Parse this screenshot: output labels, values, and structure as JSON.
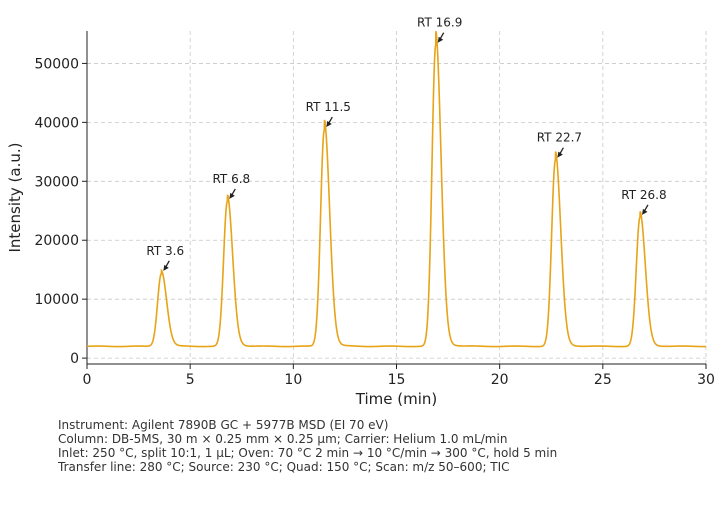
{
  "chart_data": {
    "type": "line",
    "xlabel": "Time (min)",
    "ylabel": "Intensity (a.u.)",
    "xlim": [
      0,
      30
    ],
    "ylim": [
      -1000,
      55500
    ],
    "xticks": [
      0,
      5,
      10,
      15,
      20,
      25,
      30
    ],
    "yticks": [
      0,
      10000,
      20000,
      30000,
      40000,
      50000
    ],
    "grid": true,
    "line_color": "#E8A317",
    "baseline": 2000,
    "peaks": [
      {
        "label": "RT 3.6",
        "x": 3.6,
        "y": 14300
      },
      {
        "label": "RT 6.8",
        "x": 6.8,
        "y": 26500
      },
      {
        "label": "RT 11.5",
        "x": 11.5,
        "y": 38700
      },
      {
        "label": "RT 16.9",
        "x": 16.9,
        "y": 53000
      },
      {
        "label": "RT 22.7",
        "x": 22.7,
        "y": 33500
      },
      {
        "label": "RT 26.8",
        "x": 26.8,
        "y": 23800
      }
    ]
  },
  "notes": [
    "Instrument: Agilent 7890B GC + 5977B MSD (EI 70 eV)",
    "Column: DB-5MS, 30 m × 0.25 mm × 0.25 µm; Carrier: Helium 1.0 mL/min",
    "Inlet: 250 °C, split 10:1, 1 µL; Oven: 70 °C 2 min → 10 °C/min → 300 °C, hold 5 min",
    "Transfer line: 280 °C; Source: 230 °C; Quad: 150 °C; Scan: m/z 50–600; TIC"
  ]
}
